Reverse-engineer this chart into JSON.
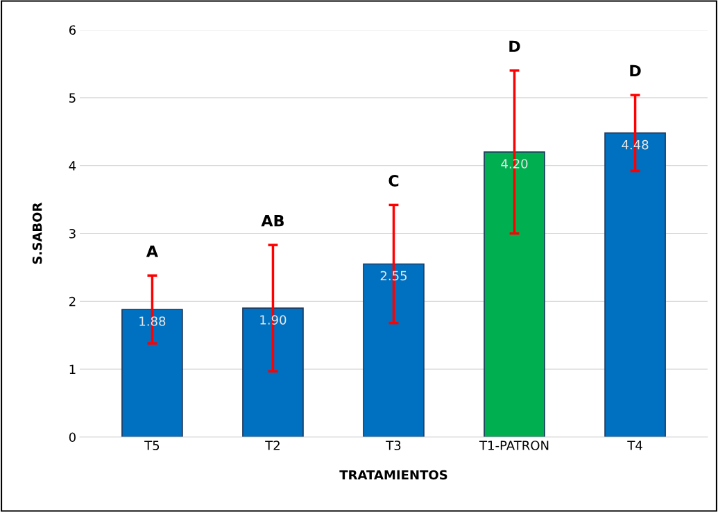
{
  "chart_data": {
    "type": "bar",
    "xlabel": "TRATAMIENTOS",
    "ylabel": "S.SABOR",
    "categories": [
      "T5",
      "T2",
      "T3",
      "T1-PATRON",
      "T4"
    ],
    "values": [
      1.88,
      1.9,
      2.55,
      4.2,
      4.48
    ],
    "value_labels": [
      "1.88",
      "1.90",
      "2.55",
      "4.20",
      "4.48"
    ],
    "colors": [
      "#0070c0",
      "#0070c0",
      "#0070c0",
      "#00b050",
      "#0070c0"
    ],
    "errors": [
      0.5,
      0.93,
      0.87,
      1.2,
      0.56
    ],
    "ylim": [
      0,
      6
    ],
    "yticks": [
      0,
      1,
      2,
      3,
      4,
      5,
      6
    ],
    "grid": "y",
    "annotations": [
      "A",
      "AB",
      "C",
      "D",
      "D"
    ]
  }
}
